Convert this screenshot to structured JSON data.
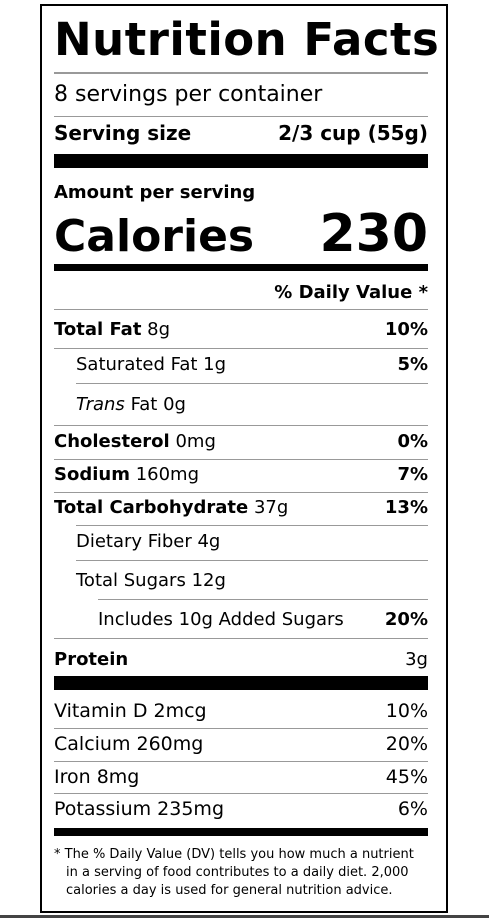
{
  "title": "Nutrition Facts",
  "servings_per_container": "8 servings per container",
  "serving_size": {
    "label": "Serving size",
    "value": "2/3 cup (55g)"
  },
  "amount_per_serving": "Amount per serving",
  "calories": {
    "label": "Calories",
    "value": "230"
  },
  "daily_value_header": "% Daily Value *",
  "nutrients": [
    {
      "name": "Total Fat",
      "amount": "8g",
      "dv": "10%"
    },
    {
      "name": "Saturated Fat",
      "amount": "1g",
      "dv": "5%"
    },
    {
      "name_italic": "Trans",
      "name": "Fat",
      "amount": "0g",
      "dv": ""
    },
    {
      "name": "Cholesterol",
      "amount": "0mg",
      "dv": "0%"
    },
    {
      "name": "Sodium",
      "amount": "160mg",
      "dv": "7%"
    },
    {
      "name": "Total Carbohydrate",
      "amount": "37g",
      "dv": "13%"
    },
    {
      "name": "Dietary Fiber",
      "amount": "4g",
      "dv": ""
    },
    {
      "name": "Total Sugars",
      "amount": "12g",
      "dv": ""
    },
    {
      "name": "Includes 10g Added Sugars",
      "amount": "",
      "dv": "20%"
    },
    {
      "name": "Protein",
      "amount": "",
      "dv": "3g"
    }
  ],
  "vitamins": [
    {
      "name": "Vitamin D 2mcg",
      "dv": "10%"
    },
    {
      "name": "Calcium 260mg",
      "dv": "20%"
    },
    {
      "name": "Iron 8mg",
      "dv": "45%"
    },
    {
      "name": "Potassium 235mg",
      "dv": "6%"
    }
  ],
  "footnote": {
    "line1": "* The % Daily Value (DV) tells you how much a nutrient",
    "line2": "in a serving of food contributes to a daily diet. 2,000",
    "line3": "calories a day is used for general nutrition advice."
  }
}
